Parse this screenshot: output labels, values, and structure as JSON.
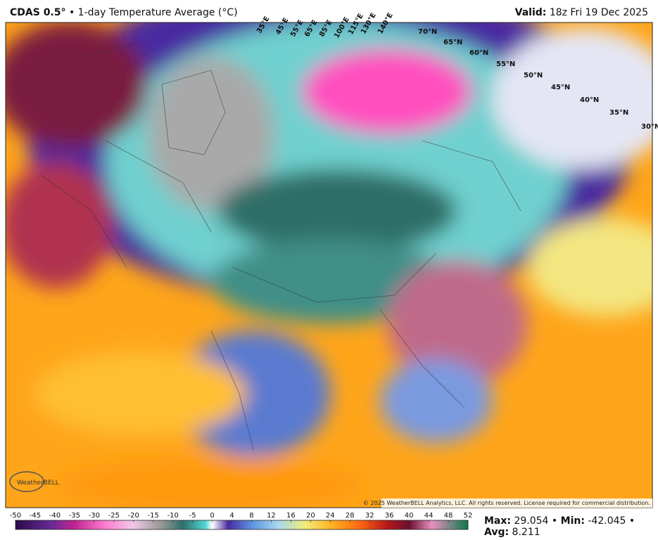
{
  "header": {
    "model": "CDAS 0.5°",
    "separator": "•",
    "title": "1-day Temperature Average (°C)",
    "valid_label": "Valid:",
    "valid_time": "18z Fri 19 Dec 2025"
  },
  "map": {
    "lat_labels": [
      "70°N",
      "65°N",
      "60°N",
      "55°N",
      "50°N",
      "45°N",
      "40°N",
      "35°N",
      "30°N"
    ],
    "lon_labels": [
      "35°E",
      "45°E",
      "55°E",
      "65°E",
      "85°E",
      "100°E",
      "115°E",
      "130°E",
      "140°E"
    ],
    "logo": "WeatherBELL",
    "copyright": "© 2025 WeatherBELL Analytics, LLC. All rights reserved. License required for commercial distribution."
  },
  "colorbar": {
    "ticks": [
      -50,
      -45,
      -40,
      -35,
      -30,
      -25,
      -20,
      -15,
      -10,
      -5,
      0,
      4,
      8,
      12,
      16,
      20,
      24,
      28,
      32,
      36,
      40,
      44,
      48,
      52
    ]
  },
  "stats": {
    "separator": "•",
    "items": [
      {
        "label": "Max:",
        "value": 29.054
      },
      {
        "label": "Min:",
        "value": -42.045
      },
      {
        "label": "Avg:",
        "value": 8.211
      }
    ]
  }
}
